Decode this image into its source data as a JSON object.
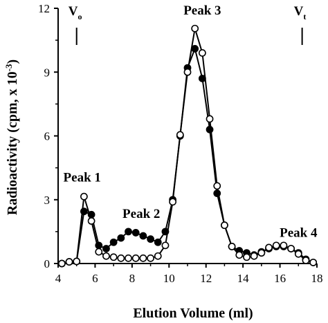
{
  "chart_data": {
    "type": "line",
    "xlabel": "Elution Volume (ml)",
    "ylabel": "Radioactivity (cpm, x 10",
    "ylabel_sup": "-3",
    "ylabel_close": ")",
    "xlim": [
      4,
      18
    ],
    "ylim": [
      0,
      12
    ],
    "x_ticks": [
      4,
      6,
      8,
      10,
      12,
      14,
      16,
      18
    ],
    "y_ticks": [
      0,
      3,
      6,
      9,
      12
    ],
    "grid": false,
    "legend": "none",
    "colors": {
      "line": "#000000",
      "filled": "#000000",
      "open_fill": "#ffffff"
    },
    "series": [
      {
        "marker": "filled-circle",
        "x": [
          4.2,
          4.6,
          5.0,
          5.4,
          5.8,
          6.2,
          6.6,
          7.0,
          7.4,
          7.8,
          8.2,
          8.6,
          9.0,
          9.4,
          9.8,
          10.2,
          10.6,
          11.0,
          11.4,
          11.8,
          12.2,
          12.6,
          13.0,
          13.4,
          13.8,
          14.2,
          14.6,
          15.0,
          15.4,
          15.8,
          16.2,
          16.6,
          17.0,
          17.4,
          17.8
        ],
        "y": [
          0.0,
          0.08,
          0.1,
          2.45,
          2.3,
          0.85,
          0.7,
          1.0,
          1.2,
          1.5,
          1.45,
          1.3,
          1.15,
          1.0,
          1.5,
          3.0,
          6.0,
          9.2,
          10.1,
          8.7,
          6.3,
          3.3,
          1.8,
          0.8,
          0.6,
          0.5,
          0.4,
          0.55,
          0.7,
          0.8,
          0.8,
          0.7,
          0.5,
          0.2,
          0.05
        ]
      },
      {
        "marker": "open-circle",
        "x": [
          4.2,
          4.6,
          5.0,
          5.4,
          5.8,
          6.2,
          6.6,
          7.0,
          7.4,
          7.8,
          8.2,
          8.6,
          9.0,
          9.4,
          9.8,
          10.2,
          10.6,
          11.0,
          11.4,
          11.8,
          12.2,
          12.6,
          13.0,
          13.4,
          13.8,
          14.2,
          14.6,
          15.0,
          15.4,
          15.8,
          16.2,
          16.6,
          17.0,
          17.4,
          17.8
        ],
        "y": [
          0.0,
          0.08,
          0.1,
          3.15,
          2.0,
          0.55,
          0.35,
          0.3,
          0.25,
          0.25,
          0.25,
          0.25,
          0.25,
          0.35,
          0.85,
          2.9,
          6.05,
          9.0,
          11.05,
          9.9,
          6.8,
          3.65,
          1.8,
          0.8,
          0.4,
          0.3,
          0.35,
          0.5,
          0.75,
          0.85,
          0.85,
          0.7,
          0.45,
          0.15,
          0.05
        ]
      }
    ],
    "annotations": [
      {
        "text": "Peak 1",
        "x": 5.3,
        "y": 3.85
      },
      {
        "text": "Peak 2",
        "x": 8.5,
        "y": 2.15
      },
      {
        "text": "Peak 3",
        "x": 11.8,
        "y": 11.7
      },
      {
        "text": "Peak 4",
        "x": 17.0,
        "y": 1.25
      }
    ],
    "volume_markers": [
      {
        "label": "V",
        "sub": "o",
        "x": 5.0
      },
      {
        "label": "V",
        "sub": "t",
        "x": 17.2
      }
    ]
  }
}
